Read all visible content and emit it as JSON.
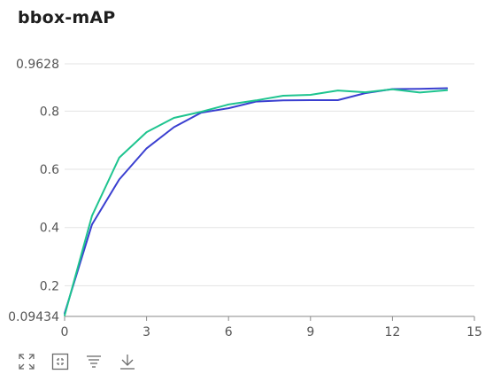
{
  "chart_data": {
    "type": "line",
    "title": "bbox-mAP",
    "xlabel": "",
    "ylabel": "",
    "xlim": [
      0,
      15
    ],
    "ylim": [
      0.09434,
      0.9628
    ],
    "x_ticks": [
      0,
      3,
      6,
      9,
      12,
      15
    ],
    "y_ticks": [
      0.09434,
      0.2,
      0.4,
      0.6,
      0.8,
      0.9628
    ],
    "y_tick_labels": [
      "0.09434",
      "0.2",
      "0.4",
      "0.6",
      "0.8",
      "0.9628"
    ],
    "grid": true,
    "series": [
      {
        "color": "#3a3fd0",
        "x": [
          0,
          1,
          2,
          3,
          4,
          5,
          6,
          7,
          8,
          9,
          10,
          11,
          12,
          13,
          14
        ],
        "y": [
          0.105,
          0.41,
          0.565,
          0.672,
          0.745,
          0.795,
          0.81,
          0.833,
          0.837,
          0.838,
          0.838,
          0.862,
          0.876,
          0.877,
          0.879
        ]
      },
      {
        "color": "#1ec48f",
        "x": [
          0,
          1,
          2,
          3,
          4,
          5,
          6,
          7,
          8,
          9,
          10,
          11,
          12,
          13,
          14
        ],
        "y": [
          0.098,
          0.44,
          0.64,
          0.728,
          0.777,
          0.798,
          0.823,
          0.837,
          0.853,
          0.856,
          0.871,
          0.865,
          0.875,
          0.864,
          0.872
        ]
      }
    ]
  },
  "toolbar": [
    {
      "name": "expand-icon"
    },
    {
      "name": "fit-icon"
    },
    {
      "name": "filter-icon"
    },
    {
      "name": "download-icon"
    }
  ]
}
